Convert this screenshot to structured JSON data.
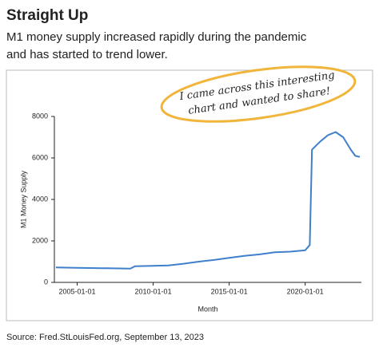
{
  "chart_data": {
    "type": "line",
    "title": "Straight Up",
    "subtitle": [
      "M1 money supply increased rapidly during the pandemic",
      "and has started to trend lower."
    ],
    "annotation": [
      "I came across this interesting",
      "chart and wanted to share!"
    ],
    "source": "Source: Fred.StLouisFed.org, September 13, 2023",
    "xlabel": "Month",
    "ylabel": "M1 Money Supply",
    "color": "#3f7fcc",
    "x": [
      2003.6,
      2005,
      2007,
      2008.5,
      2008.8,
      2010,
      2011,
      2012,
      2013,
      2014,
      2015,
      2016,
      2017,
      2018,
      2019,
      2020.0,
      2020.3,
      2020.45,
      2021,
      2021.5,
      2022,
      2022.5,
      2023,
      2023.3,
      2023.6
    ],
    "values": [
      720,
      700,
      680,
      660,
      780,
      800,
      820,
      900,
      1000,
      1080,
      1180,
      1280,
      1350,
      1450,
      1480,
      1550,
      1800,
      6400,
      6800,
      7100,
      7250,
      7000,
      6400,
      6100,
      6050
    ],
    "xlim": [
      2003.5,
      2023.7
    ],
    "xticks": [
      {
        "value": 2005,
        "label": "2005-01-01"
      },
      {
        "value": 2010,
        "label": "2010-01-01"
      },
      {
        "value": 2015,
        "label": "2015-01-01"
      },
      {
        "value": 2020,
        "label": "2020-01-01"
      }
    ],
    "ylim": [
      0,
      8000
    ],
    "yticks": [
      0,
      2000,
      4000,
      6000,
      8000
    ],
    "grid": false
  }
}
